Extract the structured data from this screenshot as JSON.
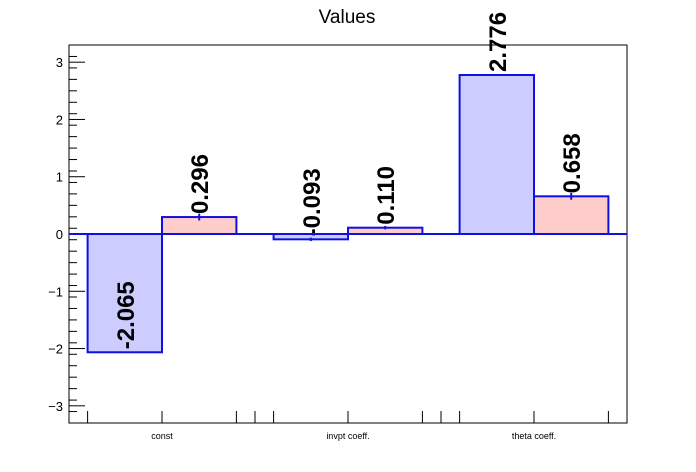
{
  "chart_data": {
    "type": "bar",
    "title": "Values",
    "xlabel": "",
    "ylabel": "",
    "categories": [
      "const",
      "invpt coeff.",
      "theta coeff."
    ],
    "series": [
      {
        "values": [
          -2.065,
          -0.093,
          2.776
        ],
        "errors": [
          0,
          0.03,
          0
        ],
        "fill_color": "#ccccff",
        "stroke_color": "#1010e0"
      },
      {
        "values": [
          0.296,
          0.11,
          0.658
        ],
        "errors": [
          0.06,
          0.03,
          0.06
        ],
        "fill_color": "#ffcccc",
        "stroke_color": "#1010e0"
      }
    ],
    "data_labels": [
      [
        "-2.065",
        "-0.093",
        "2.776"
      ],
      [
        "0.296",
        "0.110",
        "0.658"
      ]
    ],
    "ylim": [
      -3.3,
      3.3
    ],
    "yticks": [
      -3,
      -2,
      -1,
      0,
      1,
      2,
      3
    ],
    "ytick_labels": [
      "−3",
      "−2",
      "−1",
      "0",
      "1",
      "2",
      "3"
    ],
    "grid": false,
    "legend": "none"
  }
}
